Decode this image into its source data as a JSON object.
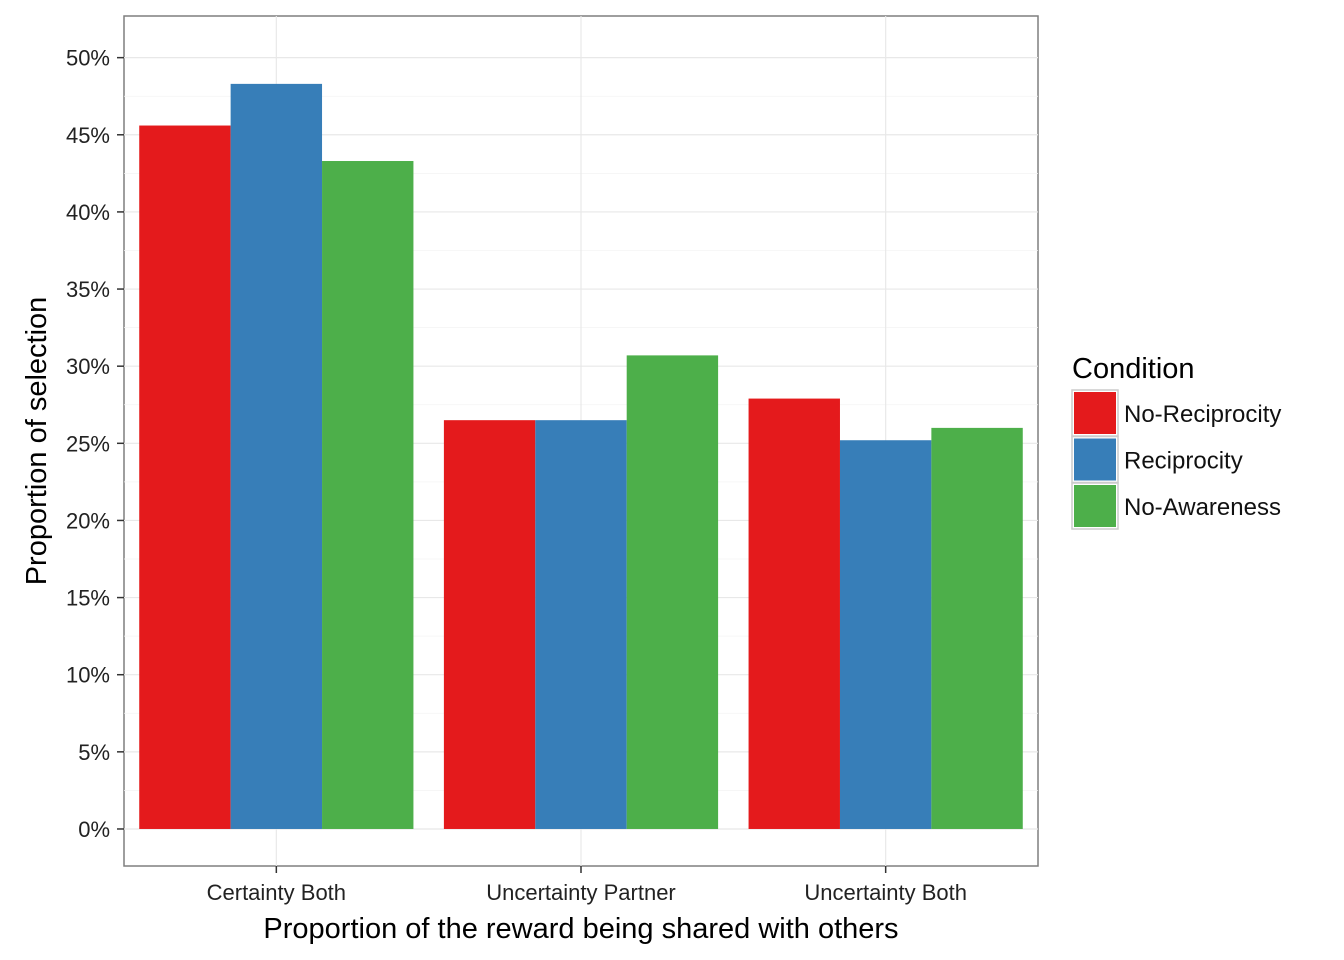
{
  "chart_data": {
    "type": "bar",
    "xlabel": "Proportion of the reward being shared with others",
    "ylabel": "Proportion of selection",
    "categories": [
      "Certainty Both",
      "Uncertainty Partner",
      "Uncertainty Both"
    ],
    "series": [
      {
        "name": "No-Reciprocity",
        "color": "#E41A1C",
        "values": [
          45.6,
          26.5,
          27.9
        ]
      },
      {
        "name": "Reciprocity",
        "color": "#377EB8",
        "values": [
          48.3,
          26.5,
          25.2
        ]
      },
      {
        "name": "No-Awareness",
        "color": "#4DAF4A",
        "values": [
          43.3,
          30.7,
          26.0
        ]
      }
    ],
    "yticks": [
      "0%",
      "5%",
      "10%",
      "15%",
      "20%",
      "25%",
      "30%",
      "35%",
      "40%",
      "45%",
      "50%"
    ],
    "ylim": [
      -2.4,
      52.7
    ],
    "grid": true,
    "legend": {
      "title": "Condition",
      "position": "right"
    }
  }
}
